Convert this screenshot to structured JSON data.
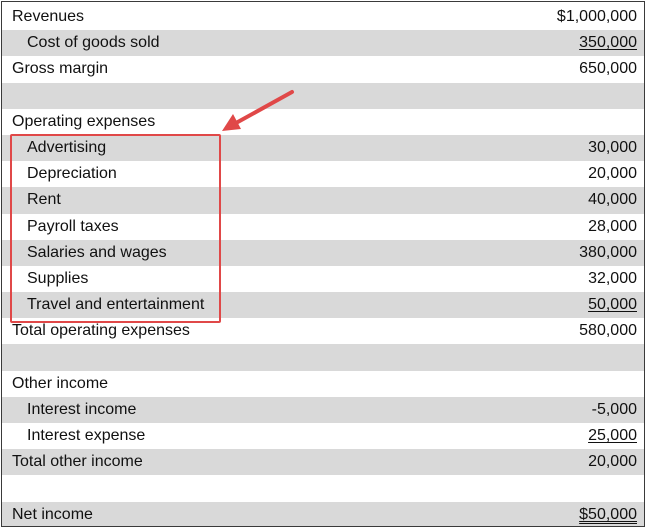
{
  "income_statement": {
    "rows": [
      {
        "label": "Revenues",
        "value": "$1,000,000",
        "indent": false,
        "shade": false,
        "underline": ""
      },
      {
        "label": "Cost of goods sold",
        "value": "350,000",
        "indent": true,
        "shade": true,
        "underline": "single"
      },
      {
        "label": "Gross margin",
        "value": "650,000",
        "indent": false,
        "shade": false,
        "underline": ""
      },
      {
        "label": "",
        "value": "",
        "indent": false,
        "shade": true,
        "underline": ""
      },
      {
        "label": "Operating expenses",
        "value": "",
        "indent": false,
        "shade": false,
        "underline": ""
      },
      {
        "label": "Advertising",
        "value": "30,000",
        "indent": true,
        "shade": true,
        "underline": ""
      },
      {
        "label": "Depreciation",
        "value": "20,000",
        "indent": true,
        "shade": false,
        "underline": ""
      },
      {
        "label": "Rent",
        "value": "40,000",
        "indent": true,
        "shade": true,
        "underline": ""
      },
      {
        "label": "Payroll taxes",
        "value": "28,000",
        "indent": true,
        "shade": false,
        "underline": ""
      },
      {
        "label": "Salaries and wages",
        "value": "380,000",
        "indent": true,
        "shade": true,
        "underline": ""
      },
      {
        "label": "Supplies",
        "value": "32,000",
        "indent": true,
        "shade": false,
        "underline": ""
      },
      {
        "label": "Travel and entertainment",
        "value": "50,000",
        "indent": true,
        "shade": true,
        "underline": "single"
      },
      {
        "label": "Total operating expenses",
        "value": "580,000",
        "indent": false,
        "shade": false,
        "underline": ""
      },
      {
        "label": "",
        "value": "",
        "indent": false,
        "shade": true,
        "underline": ""
      },
      {
        "label": "Other income",
        "value": "",
        "indent": false,
        "shade": false,
        "underline": ""
      },
      {
        "label": "Interest income",
        "value": "-5,000",
        "indent": true,
        "shade": true,
        "underline": ""
      },
      {
        "label": "Interest expense",
        "value": "25,000",
        "indent": true,
        "shade": false,
        "underline": "single"
      },
      {
        "label": "Total other income",
        "value": "20,000",
        "indent": false,
        "shade": true,
        "underline": ""
      },
      {
        "label": "",
        "value": "",
        "indent": false,
        "shade": false,
        "underline": ""
      },
      {
        "label": "Net income",
        "value": "$50,000",
        "indent": false,
        "shade": true,
        "underline": "double"
      }
    ]
  },
  "annotation": {
    "color": "#e04848"
  }
}
